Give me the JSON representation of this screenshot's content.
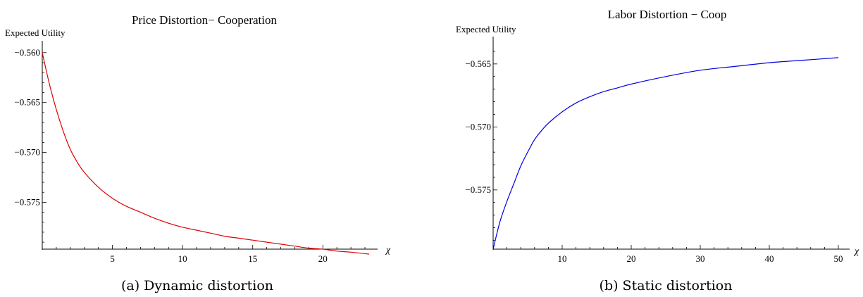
{
  "chart_data": [
    {
      "type": "line",
      "title": "Price Distortion− Cooperation",
      "ylabel": "Expected Utility",
      "xlabel": "χ",
      "xlim": [
        0,
        23.3
      ],
      "ylim": [
        -0.5797,
        -0.5598
      ],
      "origin_y": -0.5797,
      "xticks": [
        5,
        10,
        15,
        20
      ],
      "xtick_labels": [
        "5",
        "10",
        "15",
        "20"
      ],
      "yticks": [
        -0.56,
        -0.565,
        -0.57,
        -0.575
      ],
      "ytick_labels": [
        "−0.560",
        "−0.565",
        "−0.570",
        "−0.575"
      ],
      "caption": "(a) Dynamic distortion",
      "series": [
        {
          "color": "#e00000",
          "x": [
            0,
            0.5,
            1,
            1.5,
            2,
            2.5,
            3,
            4,
            5,
            6,
            7,
            8,
            9,
            10,
            11,
            12,
            13,
            14,
            15,
            16,
            17,
            18,
            19,
            20,
            21,
            22,
            23.3
          ],
          "y": [
            -0.56,
            -0.5631,
            -0.5657,
            -0.5679,
            -0.5697,
            -0.571,
            -0.572,
            -0.5735,
            -0.5746,
            -0.5754,
            -0.576,
            -0.5766,
            -0.5771,
            -0.5775,
            -0.5778,
            -0.5781,
            -0.5784,
            -0.5786,
            -0.5788,
            -0.579,
            -0.5792,
            -0.5794,
            -0.5796,
            -0.5797,
            -0.5799,
            -0.58,
            -0.5802
          ]
        }
      ]
    },
    {
      "type": "line",
      "title": "Labor Distortion − Coop",
      "ylabel": "Expected Utility",
      "xlabel": "χ",
      "xlim": [
        0,
        50
      ],
      "ylim": [
        -0.5797,
        -0.5635
      ],
      "origin_y": -0.5797,
      "xticks": [
        10,
        20,
        30,
        40,
        50
      ],
      "xtick_labels": [
        "10",
        "20",
        "30",
        "40",
        "50"
      ],
      "yticks": [
        -0.565,
        -0.57,
        -0.575
      ],
      "ytick_labels": [
        "−0.565",
        "−0.570",
        "−0.575"
      ],
      "caption": "(b) Static distortion",
      "series": [
        {
          "color": "#0000e0",
          "x": [
            0,
            1,
            2,
            3,
            4,
            5,
            6,
            7,
            8,
            10,
            12,
            14,
            16,
            18,
            20,
            25,
            30,
            35,
            40,
            45,
            50
          ],
          "y": [
            -0.5797,
            -0.5775,
            -0.5759,
            -0.5745,
            -0.5731,
            -0.572,
            -0.571,
            -0.5703,
            -0.5697,
            -0.5688,
            -0.5681,
            -0.5676,
            -0.5672,
            -0.5669,
            -0.5666,
            -0.566,
            -0.5655,
            -0.5652,
            -0.5649,
            -0.5647,
            -0.5645
          ]
        }
      ]
    }
  ]
}
